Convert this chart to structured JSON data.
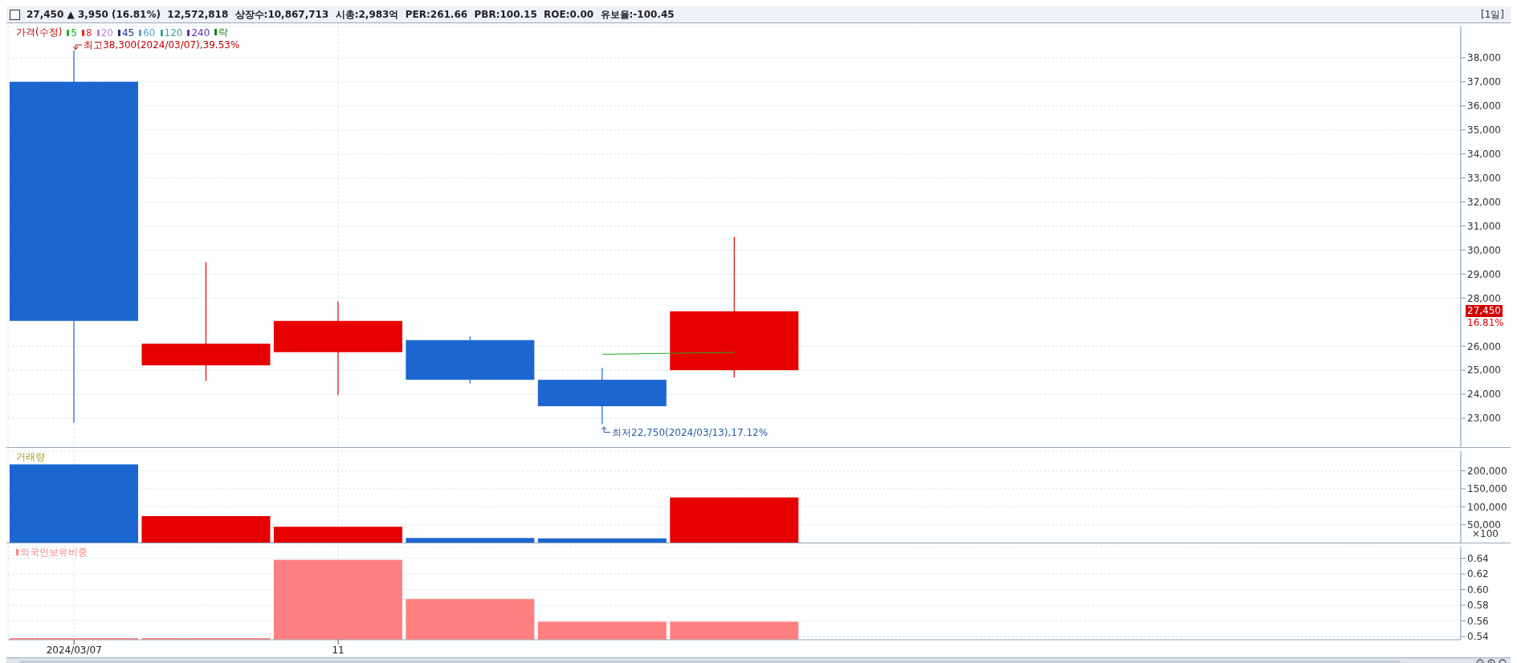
{
  "chart_data": [
    {
      "type": "candlestick",
      "title": "27,450 ▲ 3,950 (16.81%)  12,572,818  상장수:10,867,713  시총:2,983억  PER:261.66  PBR:100.15  ROE:0.00  유보율:-100.45",
      "subtitle": "[1일]",
      "legend_title": "가격(수정)",
      "legend": "top left",
      "categories": [
        "2024/03/07",
        null,
        "11",
        null,
        null,
        null,
        null,
        null,
        null,
        null,
        null
      ],
      "ohlc": [
        [
          37000,
          38300,
          22800,
          27050
        ],
        [
          25200,
          29500,
          24550,
          26100
        ],
        [
          25750,
          27850,
          23950,
          27050
        ],
        [
          26250,
          26400,
          24450,
          24600
        ],
        [
          24600,
          25100,
          22750,
          23500
        ],
        [
          25000,
          30550,
          24700,
          27450
        ],
        null,
        null,
        null,
        null,
        null
      ],
      "colors": [
        "#1c66d0",
        "#e60000",
        "#e60000",
        "#1c66d0",
        "#1c66d0",
        "#e60000",
        null,
        null,
        null,
        null,
        null
      ],
      "series": [
        {
          "name": "5",
          "color": "#22b022",
          "type": "line",
          "values": [
            null,
            null,
            null,
            null,
            25660,
            25740,
            null,
            null,
            null,
            null,
            null
          ]
        },
        {
          "name": "8",
          "color": "#e03030",
          "type": "line",
          "values": [
            null,
            null,
            null,
            null,
            null,
            null,
            null,
            null,
            null,
            null,
            null
          ]
        },
        {
          "name": "20",
          "color": "#c080e0",
          "type": "line",
          "values": [
            null,
            null,
            null,
            null,
            null,
            null,
            null,
            null,
            null,
            null,
            null
          ]
        },
        {
          "name": "45",
          "color": "#203080",
          "type": "line",
          "values": [
            null,
            null,
            null,
            null,
            null,
            null,
            null,
            null,
            null,
            null,
            null
          ]
        },
        {
          "name": "60",
          "color": "#60a0d0",
          "type": "line",
          "values": [
            null,
            null,
            null,
            null,
            null,
            null,
            null,
            null,
            null,
            null,
            null
          ]
        },
        {
          "name": "120",
          "color": "#40a0a0",
          "type": "line",
          "values": [
            null,
            null,
            null,
            null,
            null,
            null,
            null,
            null,
            null,
            null,
            null
          ]
        },
        {
          "name": "240",
          "color": "#6030c0",
          "type": "line",
          "values": [
            null,
            null,
            null,
            null,
            null,
            null,
            null,
            null,
            null,
            null,
            null
          ]
        },
        {
          "name": "락",
          "color": "#208020",
          "type": "line",
          "values": [
            null,
            null,
            null,
            null,
            null,
            null,
            null,
            null,
            null,
            null,
            null
          ]
        }
      ],
      "ylim": [
        21800,
        39300
      ],
      "yticks": [
        {
          "value": 23000,
          "label": "23,000"
        },
        {
          "value": 24000,
          "label": "24,000"
        },
        {
          "value": 25000,
          "label": "25,000"
        },
        {
          "value": 26000,
          "label": "26,000"
        },
        {
          "value": 28000,
          "label": "28,000"
        },
        {
          "value": 29000,
          "label": "29,000"
        },
        {
          "value": 30000,
          "label": "30,000"
        },
        {
          "value": 31000,
          "label": "31,000"
        },
        {
          "value": 32000,
          "label": "32,000"
        },
        {
          "value": 33000,
          "label": "33,000"
        },
        {
          "value": 34000,
          "label": "34,000"
        },
        {
          "value": 35000,
          "label": "35,000"
        },
        {
          "value": 36000,
          "label": "36,000"
        },
        {
          "value": 37000,
          "label": "37,000"
        },
        {
          "value": 38000,
          "label": "38,000"
        }
      ],
      "annotations": [
        "최고38,300(2024/03/07),39.53%",
        "최저22,750(2024/03/13),17.12%",
        "27,450",
        "16.81%"
      ],
      "grid": true,
      "tick_labels": "y"
    },
    {
      "type": "bar",
      "title": "거래량",
      "categories": [
        "2024/03/07",
        null,
        "11",
        null,
        null,
        null,
        null,
        null,
        null,
        null,
        null
      ],
      "values": [
        218000,
        74000,
        44000,
        13000,
        12000,
        126000,
        null,
        null,
        null,
        null,
        null
      ],
      "colors": [
        "#1c66d0",
        "#e60000",
        "#e60000",
        "#1c66d0",
        "#1c66d0",
        "#e60000",
        null,
        null,
        null,
        null,
        null
      ],
      "ylim": [
        0,
        255000
      ],
      "ylabel": "×100",
      "yticks": [
        {
          "value": 50000,
          "label": "50,000"
        },
        {
          "value": 100000,
          "label": "100,000"
        },
        {
          "value": 150000,
          "label": "150,000"
        },
        {
          "value": 200000,
          "label": "200,000"
        }
      ],
      "grid": true,
      "tick_labels": "y"
    },
    {
      "type": "bar",
      "categories": [
        "2024/03/07",
        null,
        "11",
        null,
        null,
        null,
        null,
        null,
        null,
        null,
        null
      ],
      "series": [
        {
          "name": "외국인보유비중",
          "color": "#ff8080",
          "values": [
            0.538,
            0.538,
            0.638,
            0.588,
            0.559,
            0.559,
            null,
            null,
            null,
            null,
            null
          ]
        }
      ],
      "ylim": [
        0.536,
        0.655
      ],
      "yticks": [
        {
          "value": 0.54,
          "label": "0.54"
        },
        {
          "value": 0.56,
          "label": "0.56"
        },
        {
          "value": 0.58,
          "label": "0.58"
        },
        {
          "value": 0.6,
          "label": "0.60"
        },
        {
          "value": 0.62,
          "label": "0.62"
        },
        {
          "value": 0.64,
          "label": "0.64"
        }
      ],
      "grid": true,
      "legend": "top left"
    }
  ]
}
